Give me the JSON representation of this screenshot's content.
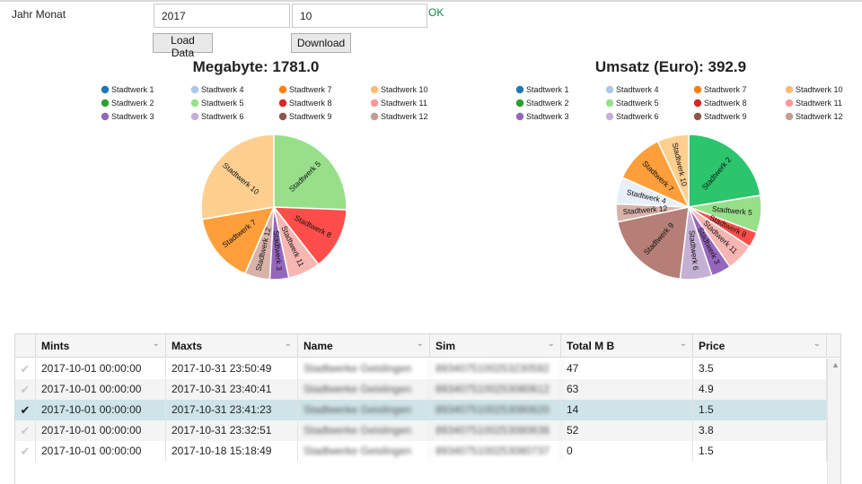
{
  "form": {
    "label": "Jahr Monat",
    "year_value": "2017",
    "month_value": "10",
    "ok_label": "OK",
    "load_button": "Load Data",
    "download_button": "Download"
  },
  "chart_data": [
    {
      "type": "pie",
      "title": "Megabyte: 1781.0",
      "legend_position": "top",
      "legend": [
        "Stadtwerk 1",
        "Stadtwerk 2",
        "Stadtwerk 3",
        "Stadtwerk 4",
        "Stadtwerk 5",
        "Stadtwerk 6",
        "Stadtwerk 7",
        "Stadtwerk 8",
        "Stadtwerk 9",
        "Stadtwerk 10",
        "Stadtwerk 11",
        "Stadtwerk 12"
      ],
      "slices": [
        {
          "label": "Stadtwerk 5",
          "value": 25.6,
          "color": "#98df8a"
        },
        {
          "label": "Stadtwerk 8",
          "value": 13.9,
          "color": "#ff4e4a"
        },
        {
          "label": "Stadtwerk 11",
          "value": 7.2,
          "color": "#f7b6b2"
        },
        {
          "label": "Stadtwerk 3",
          "value": 4.2,
          "color": "#9467bd"
        },
        {
          "label": "Stadtwerk 12",
          "value": 5.6,
          "color": "#d8b3aa"
        },
        {
          "label": "Stadtwerk 7",
          "value": 15.8,
          "color": "#ff9f3c"
        },
        {
          "label": "Stadtwerk 10",
          "value": 27.7,
          "color": "#ffcf90"
        }
      ]
    },
    {
      "type": "pie",
      "title": "Umsatz (Euro): 392.9",
      "legend_position": "top",
      "legend": [
        "Stadtwerk 1",
        "Stadtwerk 2",
        "Stadtwerk 3",
        "Stadtwerk 4",
        "Stadtwerk 5",
        "Stadtwerk 6",
        "Stadtwerk 7",
        "Stadtwerk 8",
        "Stadtwerk 9",
        "Stadtwerk 10",
        "Stadtwerk 11",
        "Stadtwerk 12"
      ],
      "slices": [
        {
          "label": "Stadtwerk 2",
          "value": 22.4,
          "color": "#2cc46c"
        },
        {
          "label": "Stadtwerk 5",
          "value": 8.3,
          "color": "#98df8a"
        },
        {
          "label": "Stadtwerk 8",
          "value": 3.5,
          "color": "#ff4e4a"
        },
        {
          "label": "Stadtwerk 11",
          "value": 6.2,
          "color": "#f7b6b2"
        },
        {
          "label": "Stadtwerk 3",
          "value": 4.4,
          "color": "#9467bd"
        },
        {
          "label": "Stadtwerk 6",
          "value": 7.1,
          "color": "#c5b0d5"
        },
        {
          "label": "Stadtwerk 9",
          "value": 19.8,
          "color": "#b57e76"
        },
        {
          "label": "Stadtwerk 12",
          "value": 4.0,
          "color": "#d8b3aa"
        },
        {
          "label": "Stadtwerk 4",
          "value": 6.0,
          "color": "#e8f0f7"
        },
        {
          "label": "Stadtwerk 7",
          "value": 11.3,
          "color": "#ff9f3c"
        },
        {
          "label": "Stadtwerk 10",
          "value": 7.0,
          "color": "#ffcf90"
        }
      ]
    }
  ],
  "legend_colors": {
    "Stadtwerk 1": "#1f77b4",
    "Stadtwerk 2": "#2ca02c",
    "Stadtwerk 3": "#9467bd",
    "Stadtwerk 4": "#aec7e8",
    "Stadtwerk 5": "#98df8a",
    "Stadtwerk 6": "#c5b0d5",
    "Stadtwerk 7": "#ff7f0e",
    "Stadtwerk 8": "#d62728",
    "Stadtwerk 9": "#8c564b",
    "Stadtwerk 10": "#ffbb78",
    "Stadtwerk 11": "#ff9896",
    "Stadtwerk 12": "#c49c94"
  },
  "grid": {
    "columns": [
      "Mints",
      "Maxts",
      "Name",
      "Sim",
      "Total M B",
      "Price"
    ],
    "rows": [
      [
        "2017-10-01 00:00:00",
        "2017-10-31 23:50:49",
        "Stadtwerke Geislingen",
        "8934075100253230592",
        "47",
        "3.5"
      ],
      [
        "2017-10-01 00:00:00",
        "2017-10-31 23:40:41",
        "Stadtwerke Geislingen",
        "8934075100253080612",
        "63",
        "4.9"
      ],
      [
        "2017-10-01 00:00:00",
        "2017-10-31 23:41:23",
        "Stadtwerke Geislingen",
        "8934075100253080620",
        "14",
        "1.5"
      ],
      [
        "2017-10-01 00:00:00",
        "2017-10-31 23:32:51",
        "Stadtwerke Geislingen",
        "8934075100253080638",
        "52",
        "3.8"
      ],
      [
        "2017-10-01 00:00:00",
        "2017-10-18 15:18:49",
        "Stadtwerke Geislingen",
        "8934075100253080737",
        "0",
        "1.5"
      ]
    ],
    "selected_row": 2,
    "checked_icon": "checkmark-icon"
  }
}
